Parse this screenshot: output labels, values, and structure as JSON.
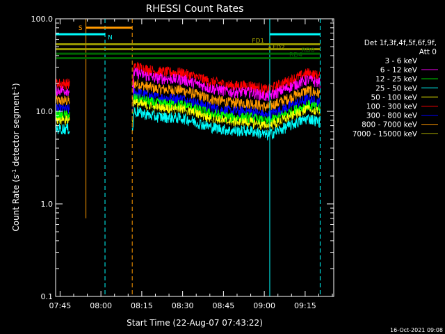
{
  "chart_data": {
    "type": "line",
    "title": "RHESSI Count Rates",
    "xlabel": "Start Time (22-Aug-07 07:43:22)",
    "ylabel_parts": [
      "Count Rate (s",
      "-1",
      " detector segment",
      "-1",
      ")"
    ],
    "y_scale": "log",
    "ylim": [
      0.1,
      100.0
    ],
    "y_ticks": [
      {
        "value": 0.1,
        "label": "0.1"
      },
      {
        "value": 1.0,
        "label": "1.0"
      },
      {
        "value": 10.0,
        "label": "10.0"
      },
      {
        "value": 100.0,
        "label": "100.0"
      }
    ],
    "x_range_minutes": [
      "07:43:22",
      "09:25:30"
    ],
    "x_ticks": [
      {
        "time": "07:45",
        "label": "07:45"
      },
      {
        "time": "08:00",
        "label": "08:00"
      },
      {
        "time": "08:15",
        "label": "08:15"
      },
      {
        "time": "08:30",
        "label": "08:30"
      },
      {
        "time": "08:45",
        "label": "08:45"
      },
      {
        "time": "09:00",
        "label": "09:00"
      },
      {
        "time": "09:15",
        "label": "09:15"
      }
    ],
    "legend_header": [
      "Det 1f,3f,4f,5f,6f,9f,",
      "Att 0"
    ],
    "legend_position": "right",
    "series": [
      {
        "name": "3 - 6 keV",
        "color": "#000000",
        "base": 7.0
      },
      {
        "name": "6 - 12 keV",
        "color": "#ff00ff",
        "base": 17.0
      },
      {
        "name": "12 - 25 keV",
        "color": "#00ff00",
        "base": 9.0
      },
      {
        "name": "25 - 50 keV",
        "color": "#00ffff",
        "base": 6.5
      },
      {
        "name": "50 - 100 keV",
        "color": "#ffff00",
        "base": 8.0
      },
      {
        "name": "100 - 300 keV",
        "color": "#ff0000",
        "base": 20.0
      },
      {
        "name": "300 - 800 keV",
        "color": "#0000ff",
        "base": 10.5
      },
      {
        "name": "800 - 7000 keV",
        "color": "#ff9900",
        "base": 13.0
      },
      {
        "name": "7000 - 15000 keV",
        "color": "#999900",
        "base": 0
      }
    ],
    "profile": [
      {
        "time": "08:12",
        "factor": 1.55
      },
      {
        "time": "08:20",
        "factor": 1.35
      },
      {
        "time": "08:30",
        "factor": 1.3
      },
      {
        "time": "08:40",
        "factor": 1.05
      },
      {
        "time": "08:48",
        "factor": 0.95
      },
      {
        "time": "08:55",
        "factor": 0.95
      },
      {
        "time": "09:01",
        "factor": 0.85
      },
      {
        "time": "09:05",
        "factor": 0.95
      },
      {
        "time": "09:10",
        "factor": 1.1
      },
      {
        "time": "09:16",
        "factor": 1.3
      },
      {
        "time": "09:20",
        "factor": 1.2
      }
    ],
    "data_segments": [
      {
        "start": "07:43:22",
        "end": "07:48:30"
      },
      {
        "start": "08:11:30",
        "end": "09:20:30"
      }
    ],
    "vertical_markers": [
      {
        "time": "07:43:22",
        "color": "#00ffff",
        "style": "solid"
      },
      {
        "time": "07:54:30",
        "color": "#ff9900",
        "style": "solid",
        "ymin": 0.7
      },
      {
        "time": "08:01:30",
        "color": "#00ffff",
        "style": "dashed"
      },
      {
        "time": "08:11:30",
        "color": "#ff9900",
        "style": "dashed"
      },
      {
        "time": "09:02:00",
        "color": "#00ffff",
        "style": "solid"
      },
      {
        "time": "09:20:30",
        "color": "#00ffff",
        "style": "dashed"
      }
    ],
    "flag_bars": [
      {
        "label": "S",
        "color": "#ff9900",
        "start": "07:54:30",
        "end": "08:11:30",
        "level": 80,
        "label_side": "left"
      },
      {
        "label": "N",
        "color": "#00ffff",
        "start": "07:43:22",
        "end": "08:01:30",
        "level": 68,
        "label_side": "right"
      },
      {
        "label": "",
        "color": "#00ffff",
        "start": "09:02:00",
        "end": "09:20:30",
        "level": 68,
        "label_side": "none"
      },
      {
        "label": "FD1",
        "color": "#999900",
        "start": "07:43:22",
        "end": "09:20:30",
        "level": 53,
        "label_side": "left_at",
        "label_time": "09:00:00"
      },
      {
        "label": "FD2",
        "color": "#999900",
        "start": "09:02:00",
        "end": "09:02:00",
        "level": 49,
        "label_side": "right_at",
        "label_time": "09:02:00"
      },
      {
        "label": "",
        "color": "#999900",
        "start": "07:43:22",
        "end": "09:20:30",
        "level": 47,
        "label_side": "none"
      },
      {
        "label": "RD0",
        "color": "#006600",
        "start": "07:43:22",
        "end": "09:20:30",
        "level": 42,
        "label_side": "left_at",
        "label_time": "09:18:30"
      },
      {
        "label": "RD4",
        "color": "#006600",
        "start": "07:43:22",
        "end": "09:20:30",
        "level": 37.5,
        "label_side": "left_at",
        "label_time": "09:14:00"
      }
    ]
  },
  "footer_timestamp": "16-Oct-2021 09:08"
}
